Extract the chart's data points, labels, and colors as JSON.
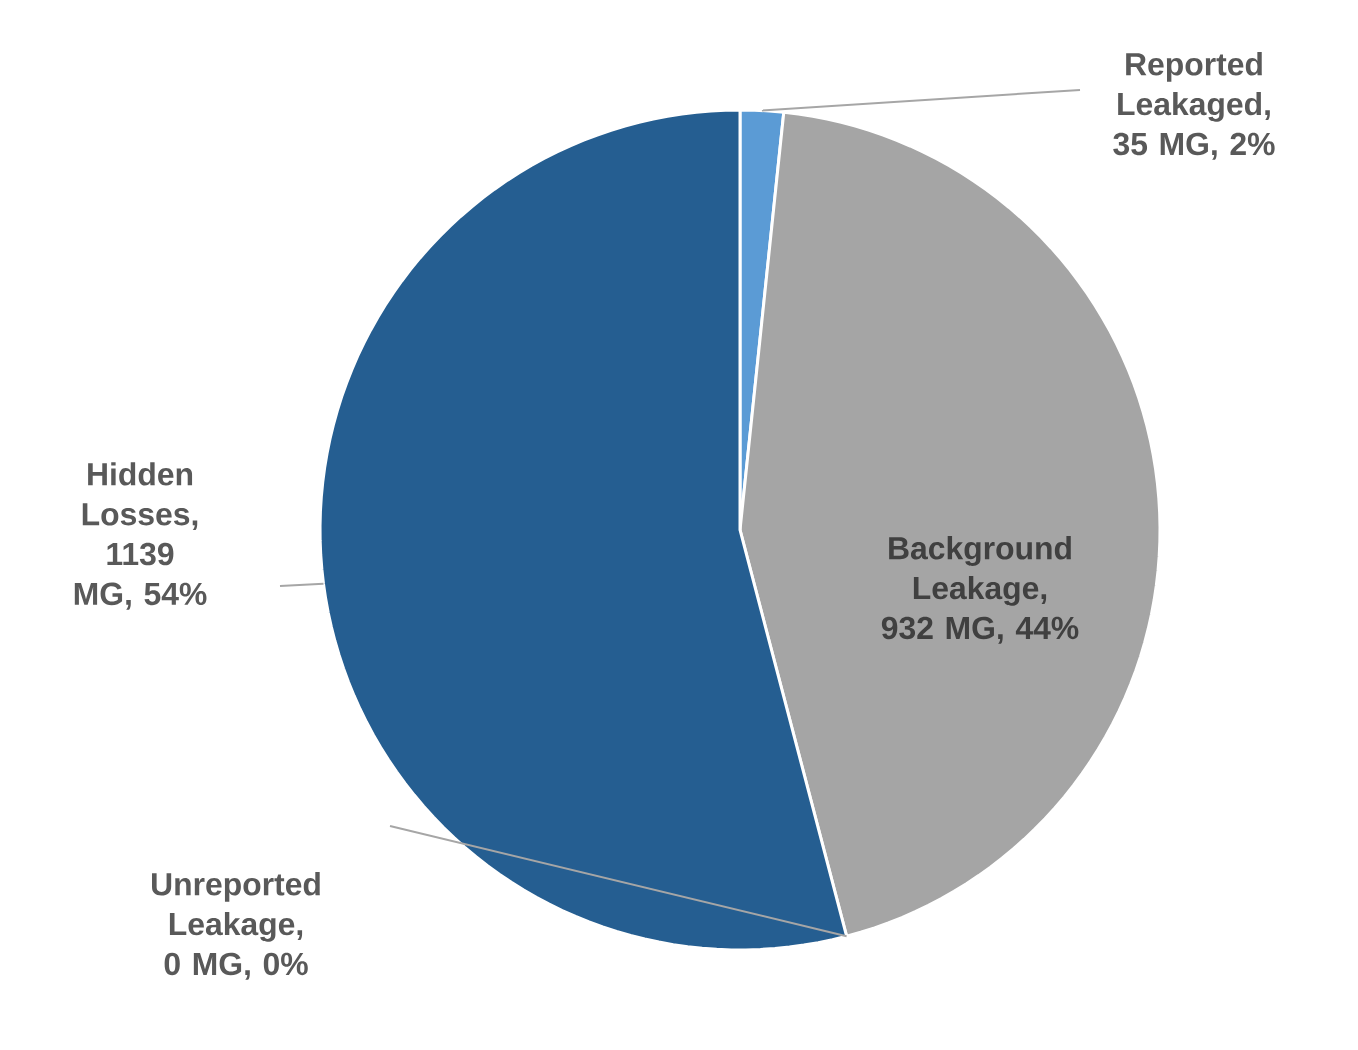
{
  "chart_data": {
    "type": "pie",
    "categories": [
      "Reported Leakaged, 35  MG, 2%",
      "Background Leakage, 932 MG, 44%",
      "Unreported Leakage, 0 MG, 0%",
      "Hidden Losses, 1139 MG, 54%"
    ],
    "values": [
      35,
      932,
      0,
      1139
    ],
    "colors": [
      "#5b9bd5",
      "#a5a5a5",
      "#ed7d31",
      "#255e91"
    ],
    "legend": false
  }
}
